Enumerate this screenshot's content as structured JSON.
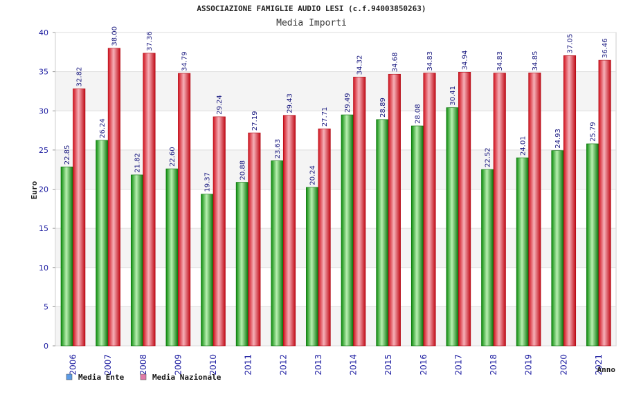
{
  "chart_data": {
    "type": "bar",
    "title": "ASSOCIAZIONE FAMIGLIE AUDIO LESI (c.f.94003850263)",
    "subtitle": "Media Importi",
    "xlabel": "Anno",
    "ylabel": "Euro",
    "ylim": [
      0,
      40
    ],
    "yticks": [
      0,
      5,
      10,
      15,
      20,
      25,
      30,
      35,
      40
    ],
    "grid": true,
    "legend_position": "bottom-left",
    "categories": [
      "2006",
      "2007",
      "2008",
      "2009",
      "2010",
      "2011",
      "2012",
      "2013",
      "2014",
      "2015",
      "2016",
      "2017",
      "2018",
      "2019",
      "2020",
      "2021"
    ],
    "series": [
      {
        "name": "Media Ente",
        "color": "#0aa00a",
        "legend_color": "#5b9be6",
        "values": [
          22.85,
          26.24,
          21.82,
          22.6,
          19.37,
          20.88,
          23.63,
          20.24,
          29.49,
          28.89,
          28.08,
          30.41,
          22.52,
          24.01,
          24.93,
          25.79
        ],
        "labels": [
          "22.85",
          "26.24",
          "21.82",
          "22.60",
          "19.37",
          "20.88",
          "23.63",
          "20.24",
          "29.49",
          "28.89",
          "28.08",
          "30.41",
          "22.52",
          "24.01",
          "24.93",
          "25.79"
        ]
      },
      {
        "name": "Media Nazionale",
        "color": "#e81c2a",
        "legend_color": "#e07aa8",
        "values": [
          32.82,
          38.0,
          37.36,
          34.79,
          29.24,
          27.19,
          29.43,
          27.71,
          34.32,
          34.68,
          34.83,
          34.94,
          34.83,
          34.85,
          37.05,
          36.46
        ],
        "labels": [
          "32.82",
          "38.00",
          "37.36",
          "34.79",
          "29.24",
          "27.19",
          "29.43",
          "27.71",
          "34.32",
          "34.68",
          "34.83",
          "34.94",
          "34.83",
          "34.85",
          "37.05",
          "36.46"
        ]
      }
    ]
  }
}
